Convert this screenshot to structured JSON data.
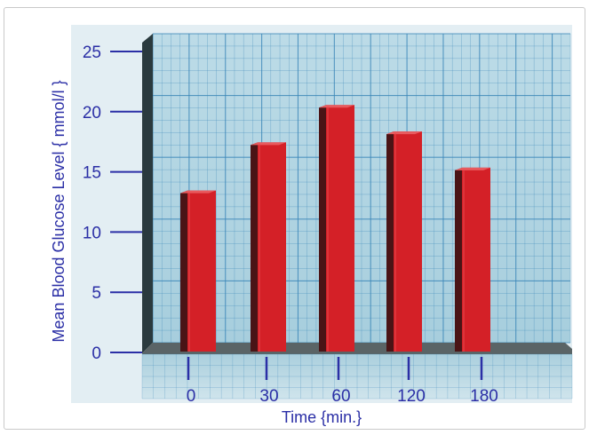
{
  "chart_data": {
    "type": "bar",
    "categories": [
      "0",
      "30",
      "60",
      "120",
      "180"
    ],
    "values": [
      13.6,
      17.6,
      20.7,
      18.5,
      15.5
    ],
    "xlabel": "Time {min.}",
    "ylabel": "Mean Blood Glucose Level { mmol/l }",
    "ylim": [
      0,
      25
    ],
    "yticks": [
      "0",
      "5",
      "10",
      "15",
      "20",
      "25"
    ],
    "grid": true,
    "legend": "none",
    "colors": {
      "bar_front": "#d42027",
      "bar_side": "#4a1416",
      "bar_top": "#e85a5e",
      "wall": "#a9d0df",
      "grid_line": "#3a86b8",
      "axis_text": "#2b2fa6",
      "floor": "#5a6466"
    }
  }
}
